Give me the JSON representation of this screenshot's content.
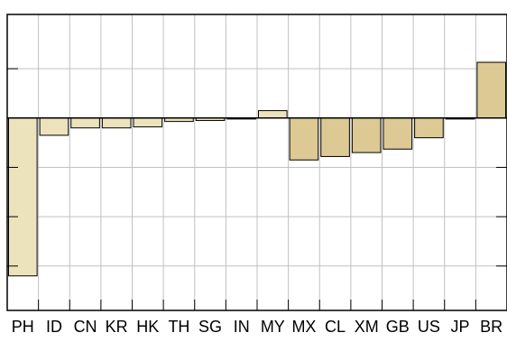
{
  "chart_data": {
    "type": "bar",
    "categories": [
      "PH",
      "ID",
      "CN",
      "KR",
      "HK",
      "TH",
      "SG",
      "IN",
      "MY",
      "MX",
      "CL",
      "XM",
      "GB",
      "US",
      "JP",
      "BR"
    ],
    "series": [
      {
        "values": [
          -3.2,
          -0.35,
          -0.2,
          -0.2,
          -0.18,
          -0.07,
          -0.05,
          -0.02,
          0.15,
          -0.85,
          -0.78,
          -0.7,
          -0.63,
          -0.4,
          -0.02,
          1.13
        ]
      }
    ],
    "bar_colors": [
      "#ece3bd",
      "#ece3bd",
      "#ece3bd",
      "#ece3bd",
      "#ece3bd",
      "#ece3bd",
      "#ece3bd",
      "#ece3bd",
      "#ece3bd",
      "#dcc994",
      "#dcc994",
      "#dcc994",
      "#dcc994",
      "#dcc994",
      "#dcc994",
      "#dcc994"
    ],
    "colors": {
      "light": "#ece3bd",
      "dark": "#dcc994",
      "grid": "#c0c0c0",
      "frame": "#000000"
    },
    "ylim": [
      -3.9,
      2.1
    ],
    "grid": true,
    "y_ticks_left": [
      1,
      0,
      -1,
      -2,
      -3
    ],
    "y_ticks_right": [
      -1,
      -2,
      -3
    ],
    "title": "",
    "xlabel": "",
    "ylabel": ""
  }
}
